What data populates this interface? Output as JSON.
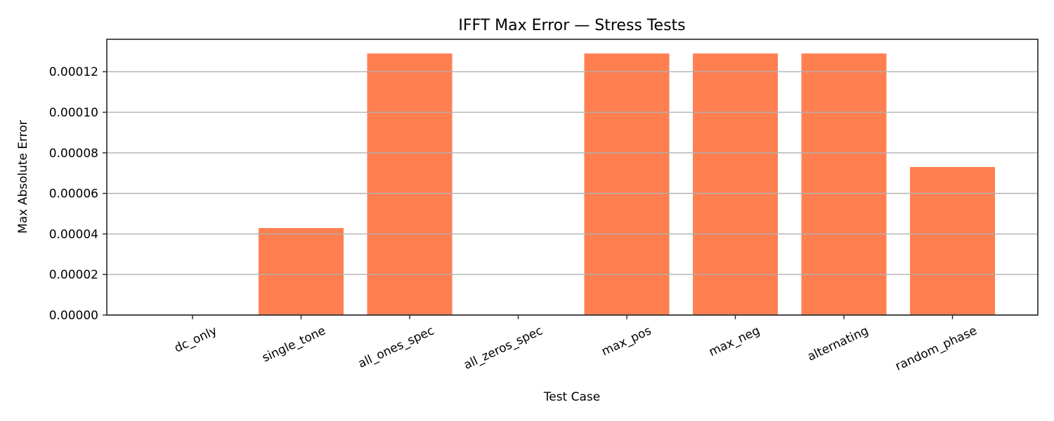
{
  "chart_data": {
    "type": "bar",
    "title": "IFFT Max Error — Stress Tests",
    "xlabel": "Test Case",
    "ylabel": "Max Absolute Error",
    "categories": [
      "dc_only",
      "single_tone",
      "all_ones_spec",
      "all_zeros_spec",
      "max_pos",
      "max_neg",
      "alternating",
      "random_phase"
    ],
    "values": [
      0.0,
      4.29e-05,
      0.000129,
      0.0,
      0.000129,
      0.000129,
      0.000129,
      7.3e-05
    ],
    "ylim": [
      0,
      0.000136
    ],
    "yticks": [
      0.0,
      2e-05,
      4e-05,
      6e-05,
      8e-05,
      0.0001,
      0.00012
    ],
    "ytick_labels": [
      "0.00000",
      "0.00002",
      "0.00004",
      "0.00006",
      "0.00008",
      "0.00010",
      "0.00012"
    ],
    "grid": {
      "axis": "y",
      "on": true
    },
    "legend": null,
    "xtick_rotation": 25,
    "bar_color": "#ff7f50",
    "grid_color": "#b0b0b0",
    "axis_color": "#262626"
  }
}
